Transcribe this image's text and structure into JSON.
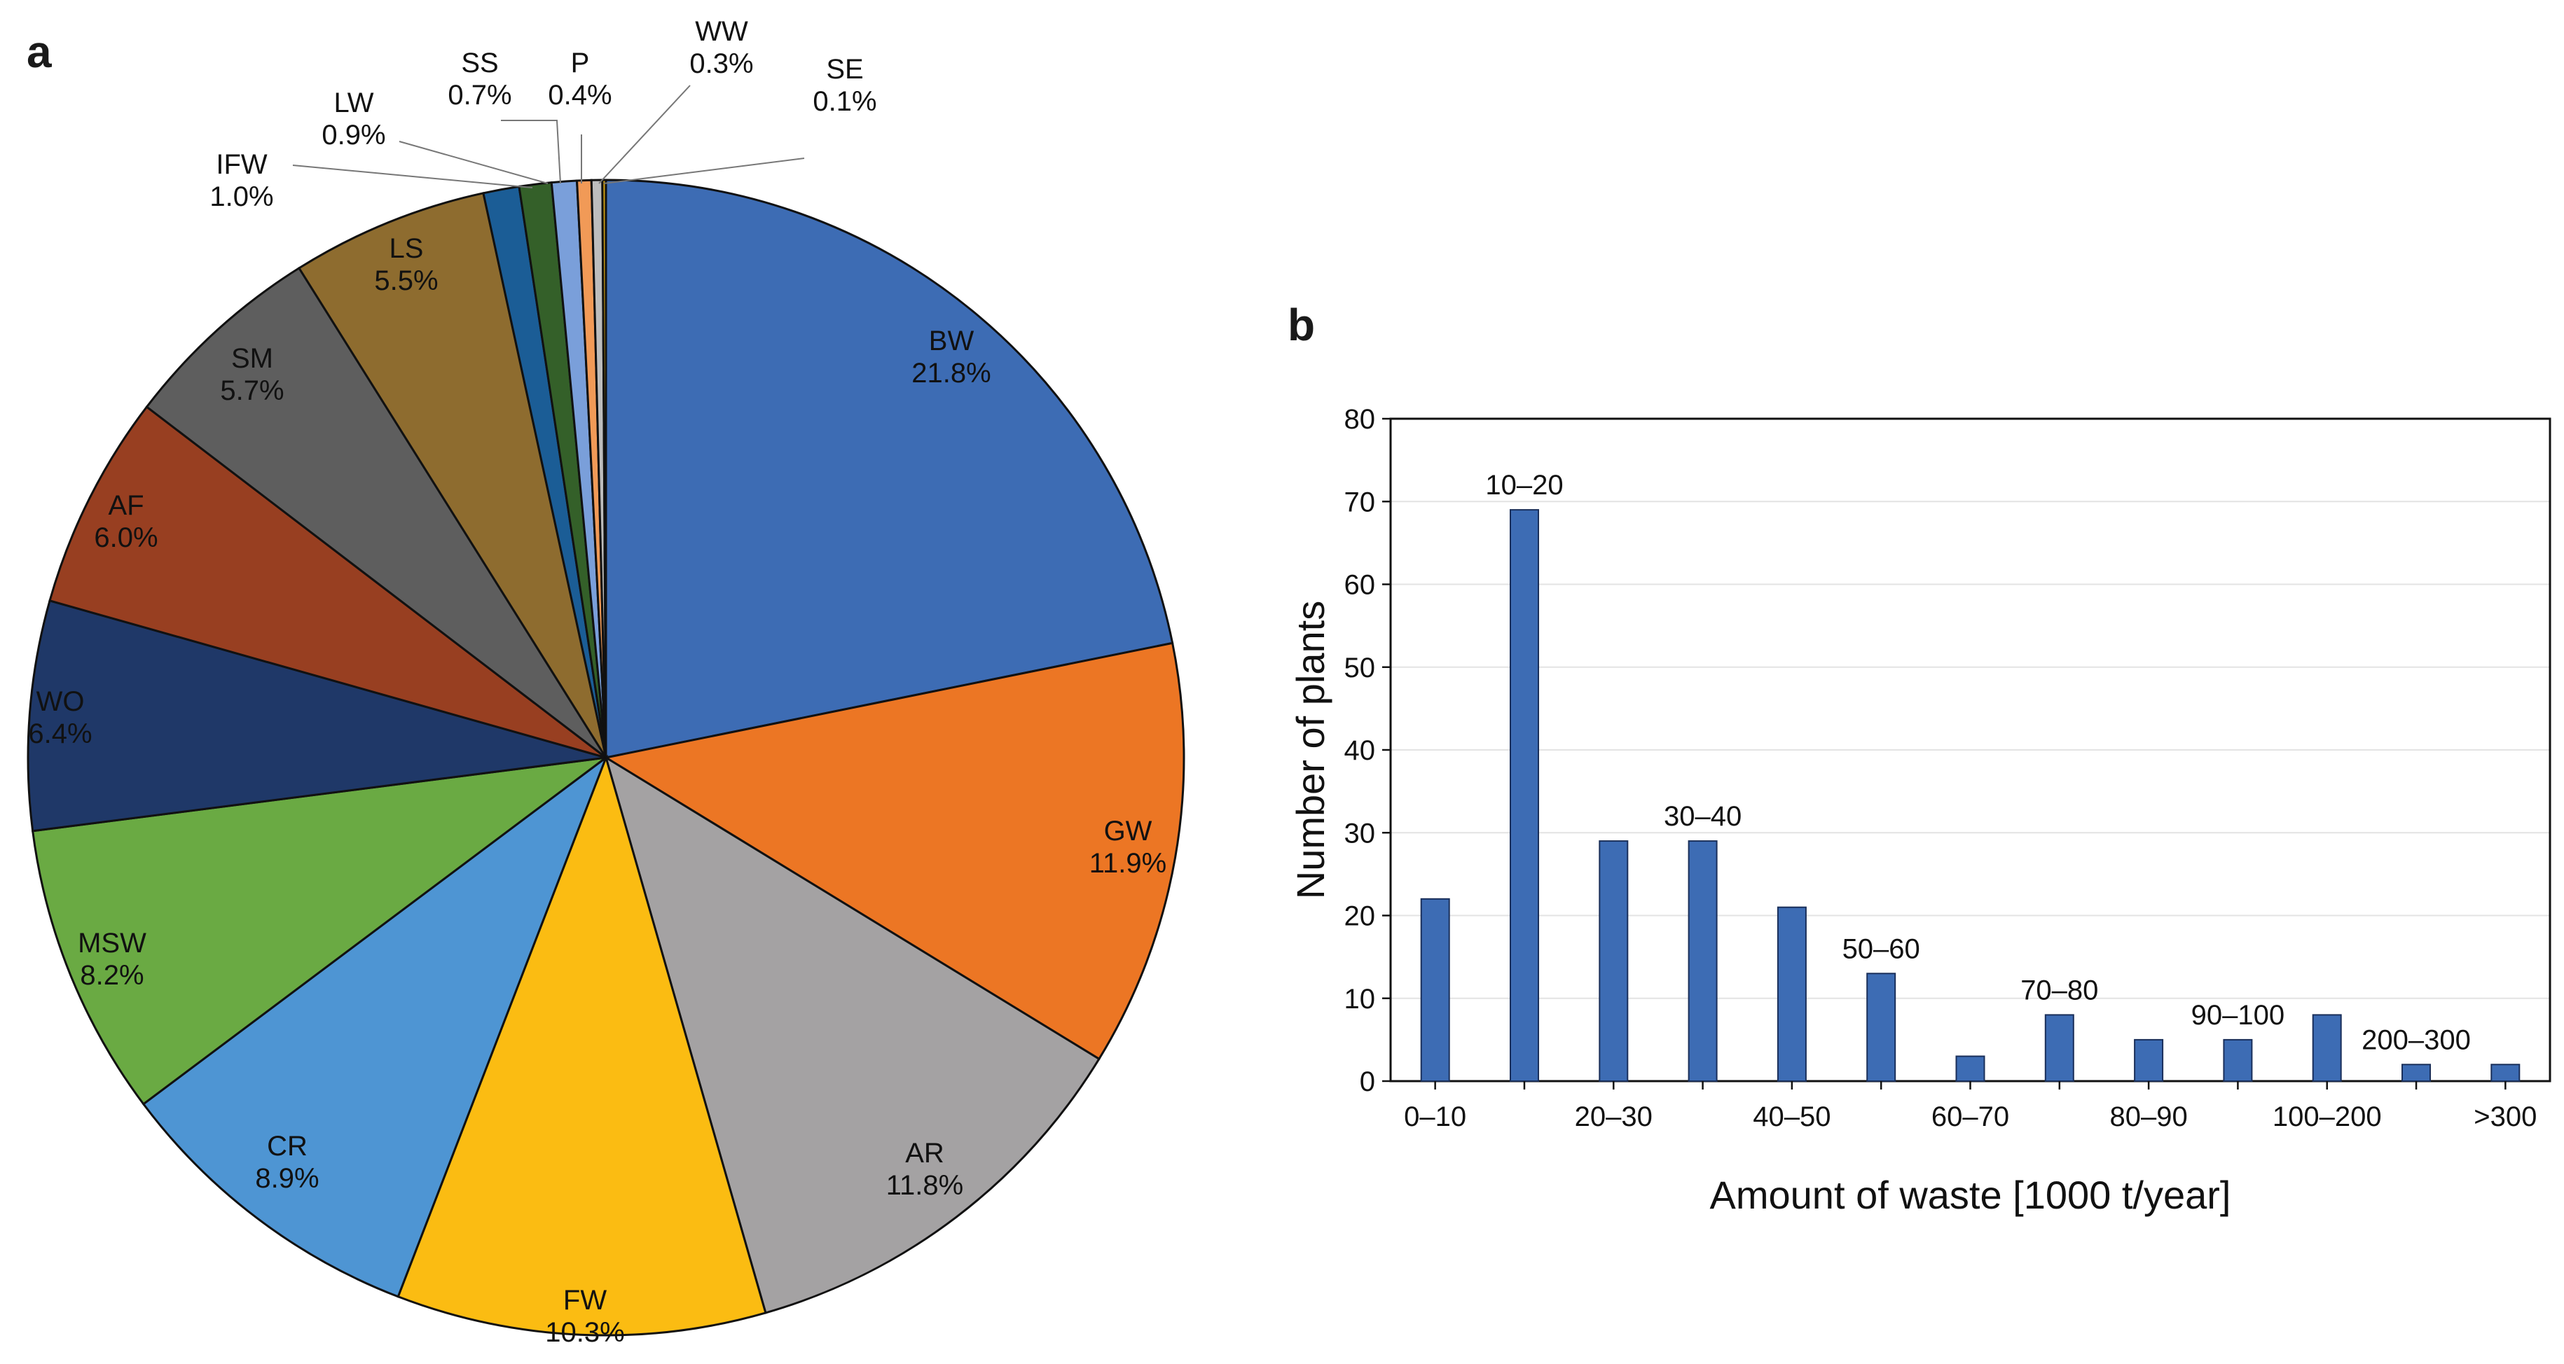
{
  "figure": {
    "panel_a_label": "a",
    "panel_b_label": "b"
  },
  "chart_data": [
    {
      "type": "pie",
      "panel": "a",
      "slices": [
        {
          "label": "BW",
          "percent_text": "21.8%",
          "value": 21.8,
          "color": "#3D6CB4"
        },
        {
          "label": "GW",
          "percent_text": "11.9%",
          "value": 11.9,
          "color": "#EC7624"
        },
        {
          "label": "AR",
          "percent_text": "11.8%",
          "value": 11.8,
          "color": "#A4A2A3"
        },
        {
          "label": "FW",
          "percent_text": "10.3%",
          "value": 10.3,
          "color": "#FBBC12"
        },
        {
          "label": "CR",
          "percent_text": "8.9%",
          "value": 8.9,
          "color": "#4E95D3"
        },
        {
          "label": "MSW",
          "percent_text": "8.2%",
          "value": 8.2,
          "color": "#6AAA43"
        },
        {
          "label": "WO",
          "percent_text": "6.4%",
          "value": 6.4,
          "color": "#1F3868"
        },
        {
          "label": "AF",
          "percent_text": "6.0%",
          "value": 6.0,
          "color": "#983F21"
        },
        {
          "label": "SM",
          "percent_text": "5.7%",
          "value": 5.7,
          "color": "#5E5E5E"
        },
        {
          "label": "LS",
          "percent_text": "5.5%",
          "value": 5.5,
          "color": "#8E6C2F"
        },
        {
          "label": "IFW",
          "percent_text": "1.0%",
          "value": 1.0,
          "color": "#1B5D96"
        },
        {
          "label": "LW",
          "percent_text": "0.9%",
          "value": 0.9,
          "color": "#346029"
        },
        {
          "label": "SS",
          "percent_text": "0.7%",
          "value": 0.7,
          "color": "#7A9FDA"
        },
        {
          "label": "P",
          "percent_text": "0.4%",
          "value": 0.4,
          "color": "#F19A57"
        },
        {
          "label": "WW",
          "percent_text": "0.3%",
          "value": 0.3,
          "color": "#BDBDBD"
        },
        {
          "label": "SE",
          "percent_text": "0.1%",
          "value": 0.1,
          "color": "#C89A12"
        }
      ]
    },
    {
      "type": "bar",
      "panel": "b",
      "bar_color": "#3D6CB4",
      "categories": [
        "0–10",
        "10–20",
        "20–30",
        "30–40",
        "40–50",
        "50–60",
        "60–70",
        "70–80",
        "80–90",
        "90–100",
        "100–200",
        "200–300",
        ">300"
      ],
      "values": [
        22,
        69,
        29,
        29,
        21,
        13,
        3,
        8,
        5,
        5,
        8,
        2,
        2
      ],
      "x_tick_labels_below": [
        "0–10",
        "20–30",
        "40–50",
        "60–70",
        "80–90",
        "100–200",
        ">300"
      ],
      "x_tick_labels_above_bars": [
        "10–20",
        "30–40",
        "50–60",
        "70–80",
        "90–100",
        "200–300"
      ],
      "ylabel": "Number of plants",
      "xlabel": "Amount of waste [1000 t/year]",
      "ylim": [
        0,
        80
      ],
      "yticks": [
        "0",
        "10",
        "20",
        "30",
        "40",
        "50",
        "60",
        "70",
        "80"
      ],
      "grid": true
    }
  ]
}
